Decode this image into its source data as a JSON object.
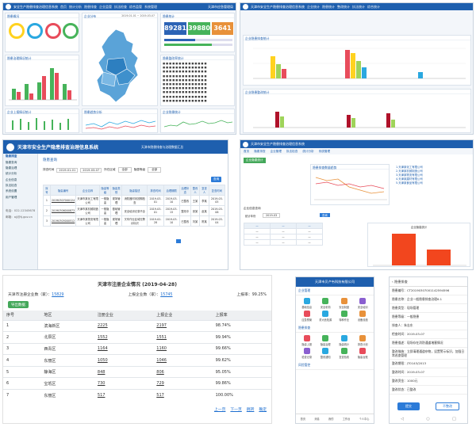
{
  "p1": {
    "title": "安全生产隐患排查治理信息系统",
    "tabs": [
      "首页",
      "统计分析",
      "隐患排查",
      "企业监管",
      "执法检查",
      "综合监管",
      "系统管理"
    ],
    "user": "天津市应急管理局",
    "cards": [
      "隐患概况",
      "企业分布",
      "隐患统计",
      "隐患治理情况统计",
      "隐患整改率统计",
      "企业上报情况统计",
      "隐患趋势分析",
      "企业隐患统计"
    ],
    "date_range": "2019-01-01 ~ 2019-03-07",
    "stats": [
      "89281",
      "39880",
      "3641"
    ],
    "colors": [
      "#ffd21f",
      "#2aa8e0",
      "#e84c5b",
      "#46b35a",
      "#8a5fd0"
    ]
  },
  "p2": {
    "title": "天津市安全生产隐患排查治理信息系统",
    "tabs": [
      "企业统计",
      "隐患统计",
      "整改统计",
      "执法统计",
      "综合统计"
    ],
    "section1": "企业隐患排查统计",
    "section2": "企业隐患整改统计"
  },
  "p3": {
    "title": "天津市安全生产隐患排查治理信息系统",
    "subtitle": "天津市隐患排查与治理数据汇总",
    "crumb": "隐患查询",
    "filter_label_1": "排查时间",
    "filter_label_2": "所在区域",
    "filter_label_3": "隐患等级",
    "date_from": "2019-01-01",
    "date_to": "2019-03-07",
    "select_all": "全部",
    "search_btn": "查询",
    "sidebar": [
      "隐患排查",
      "隐患查询",
      "隐患治理",
      "统计分析",
      "企业信息",
      "执法检查",
      "系统设置",
      "用户管理",
      "电话：022-12345678",
      "邮箱：ajj@tj.gov.cn"
    ],
    "headers": [
      "序号",
      "隐患编号",
      "企业名称",
      "隐患等级",
      "隐患类别",
      "隐患描述",
      "排查时间",
      "治理期限",
      "治理状态",
      "整改人",
      "复查人",
      "复查时间"
    ],
    "rows": [
      [
        "1",
        "20190307000124",
        "天津市某化工有限公司",
        "一般隐患",
        "现场管理",
        "消防器材未按期检查",
        "2019-03-01",
        "2019-03-10",
        "已整改",
        "王某",
        "李某",
        "2019-03-05"
      ],
      [
        "2",
        "20190306000873",
        "天津市某机械制造公司",
        "一般隐患",
        "基础管理",
        "安全培训记录不全",
        "2019-03-01",
        "2019-03-15",
        "整改中",
        "张某",
        "赵某",
        "2019-03-06"
      ],
      [
        "3",
        "20190305000512",
        "天津市某物流有限公司",
        "一般隐患",
        "现场管理",
        "叉车作业区域无警示标识",
        "2019-02-28",
        "2019-03-10",
        "已整改",
        "刘某",
        "陈某",
        "2019-03-04"
      ]
    ]
  },
  "p4": {
    "title": "天津市安全生产隐患排查治理信息系统",
    "tabs": [
      "首页",
      "隐患排查",
      "企业管理",
      "执法检查",
      "统计分析",
      "系统管理"
    ],
    "left_title": "企业隐患统计",
    "chart_title": "隐患排查数量趋势",
    "form_title": "企业信息查询",
    "year_label": "统计年份",
    "year_value": "2019-03",
    "btn": "查询",
    "list": [
      "1.天津某化工有限公司",
      "2.天津某机械制造公司",
      "3.天津某物流有限公司",
      "4.天津某建材有限公司",
      "5.天津某食品有限公司"
    ],
    "bar_title": "企业隐患统计"
  },
  "p5": {
    "title": "天津市注册企业情况 (2019-04-28)",
    "sum1_label": "天津市注册企业数（家）：",
    "sum1_value": "15829",
    "sum2_label": "上报企业数（家）：",
    "sum2_value": "15745",
    "sum3_label": "上报率：",
    "sum3_value": "99.25%",
    "export": "导出数据",
    "headers": [
      "序号",
      "地区",
      "注册企业",
      "上报企业",
      "上报率"
    ],
    "rows": [
      [
        "1",
        "滨海新区",
        "2225",
        "2197",
        "98.74%"
      ],
      [
        "2",
        "北辰区",
        "1552",
        "1551",
        "99.94%"
      ],
      [
        "3",
        "西青区",
        "1164",
        "1160",
        "99.66%"
      ],
      [
        "4",
        "东丽区",
        "1050",
        "1046",
        "99.62%"
      ],
      [
        "5",
        "静海区",
        "848",
        "806",
        "95.05%"
      ],
      [
        "6",
        "宝坻区",
        "730",
        "729",
        "99.86%"
      ],
      [
        "7",
        "东丽区",
        "517",
        "517",
        "100.00%"
      ]
    ],
    "pager": [
      "上一页",
      "下一页",
      "跳转",
      "确定"
    ]
  },
  "p6": {
    "title": "天津市贝卢韦科技有限公司",
    "section1": "企业管理",
    "section1_items": [
      "基础信息",
      "安全机构",
      "安全制度",
      "安全培训",
      "应急预案",
      "重大危险源",
      "特种作业",
      "设备设施"
    ],
    "section2": "隐患排查",
    "section2_items": [
      "隐患上报",
      "隐患治理",
      "隐患统计",
      "排查计划",
      "检查记录",
      "整改通知",
      "复查验收",
      "隐患台账"
    ],
    "section3": "风险管控",
    "nav": [
      "首页",
      "消息",
      "我的",
      "工作台",
      "个人中心"
    ]
  },
  "p7": {
    "title": "隐患排查",
    "fields": [
      "隐患编号：CT20190307001142594596",
      "隐患名称：企业一般隐患排查治理6.1",
      "隐患类型：现场管理",
      "隐患等级：一般隐患",
      "排查人：朱志东",
      "检查时间：2019-03-07",
      "隐患描述：现场存在消防通道堵塞情况",
      "整改措施：立即清理通道杂物，设置警示标识，加强日常巡查管理",
      "整改期限：JT0143/2013",
      "整改时间：2019-03-07",
      "整改资金：1000元",
      "整改状态：已整改"
    ],
    "btn_ok": "提交",
    "btn_cancel": "不整改"
  }
}
